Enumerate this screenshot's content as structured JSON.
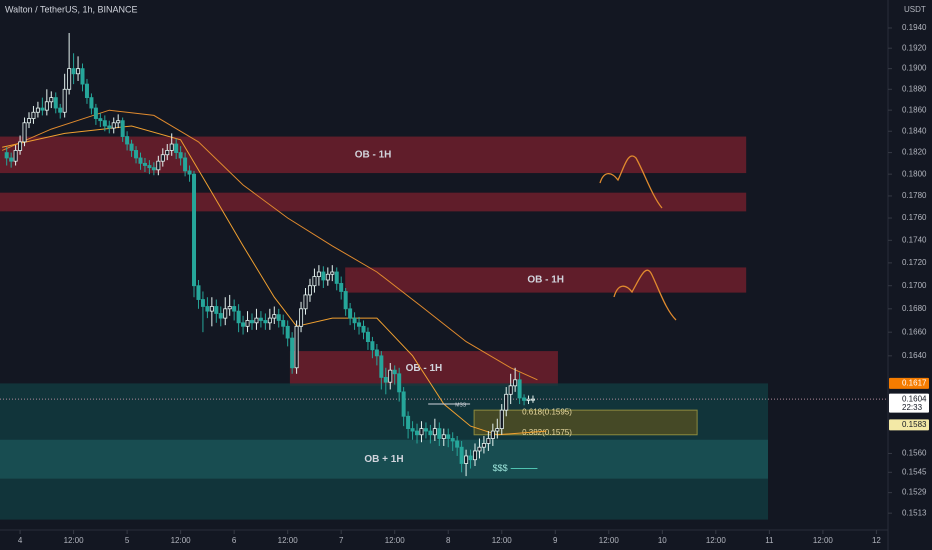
{
  "chart_data": {
    "type": "candlestick",
    "title": "Walton / TetherUS, 1h, BINANCE",
    "currency": "USDT",
    "log_scale": true,
    "grid": false,
    "background": "#131722",
    "up_color": "#e6f4f1",
    "down_color": "#26a69a",
    "xlim": [
      -4.5,
      194.6
    ],
    "ylim": [
      0.15,
      0.1968
    ],
    "xticks": [
      {
        "value": 0,
        "label": "4"
      },
      {
        "value": 12,
        "label": "12:00"
      },
      {
        "value": 24,
        "label": "5"
      },
      {
        "value": 36,
        "label": "12:00"
      },
      {
        "value": 48,
        "label": "6"
      },
      {
        "value": 60,
        "label": "12:00"
      },
      {
        "value": 72,
        "label": "7"
      },
      {
        "value": 84,
        "label": "12:00"
      },
      {
        "value": 96,
        "label": "8"
      },
      {
        "value": 108,
        "label": "12:00"
      },
      {
        "value": 120,
        "label": "9"
      },
      {
        "value": 132,
        "label": "12:00"
      },
      {
        "value": 144,
        "label": "10"
      },
      {
        "value": 156,
        "label": "12:00"
      },
      {
        "value": 168,
        "label": "11"
      },
      {
        "value": 180,
        "label": "12:00"
      },
      {
        "value": 192,
        "label": "12"
      }
    ],
    "yticks": [
      {
        "value": 0.194,
        "label": "0.1940"
      },
      {
        "value": 0.192,
        "label": "0.1920"
      },
      {
        "value": 0.19,
        "label": "0.1900"
      },
      {
        "value": 0.188,
        "label": "0.1880"
      },
      {
        "value": 0.186,
        "label": "0.1860"
      },
      {
        "value": 0.184,
        "label": "0.1840"
      },
      {
        "value": 0.182,
        "label": "0.1820"
      },
      {
        "value": 0.18,
        "label": "0.1800"
      },
      {
        "value": 0.178,
        "label": "0.1780"
      },
      {
        "value": 0.176,
        "label": "0.1760"
      },
      {
        "value": 0.174,
        "label": "0.1740"
      },
      {
        "value": 0.172,
        "label": "0.1720"
      },
      {
        "value": 0.17,
        "label": "0.1700"
      },
      {
        "value": 0.168,
        "label": "0.1680"
      },
      {
        "value": 0.166,
        "label": "0.1660"
      },
      {
        "value": 0.164,
        "label": "0.1640"
      },
      {
        "value": 0.156,
        "label": "0.1560"
      },
      0.1545,
      0.1529,
      0.1513
    ],
    "x": [
      -3,
      -2,
      -1,
      0,
      1,
      2,
      3,
      4,
      5,
      6,
      7,
      8,
      9,
      10,
      11,
      12,
      13,
      14,
      15,
      16,
      17,
      18,
      19,
      20,
      21,
      22,
      23,
      24,
      25,
      26,
      27,
      28,
      29,
      30,
      31,
      32,
      33,
      34,
      35,
      36,
      37,
      38,
      39,
      40,
      41,
      42,
      43,
      44,
      45,
      46,
      47,
      48,
      49,
      50,
      51,
      52,
      53,
      54,
      55,
      56,
      57,
      58,
      59,
      60,
      61,
      62,
      63,
      64,
      65,
      66,
      67,
      68,
      69,
      70,
      71,
      72,
      73,
      74,
      75,
      76,
      77,
      78,
      79,
      80,
      81,
      82,
      83,
      84,
      85,
      86,
      87,
      88,
      89,
      90,
      91,
      92,
      93,
      94,
      95,
      96,
      97,
      98,
      99,
      100,
      101,
      102,
      103,
      104,
      105,
      106,
      107,
      108,
      109,
      110,
      111,
      112,
      113,
      114,
      115
    ],
    "open": [
      0.182,
      0.1815,
      0.1812,
      0.1822,
      0.183,
      0.1848,
      0.1852,
      0.1858,
      0.1862,
      0.186,
      0.1868,
      0.1872,
      0.1862,
      0.1858,
      0.188,
      0.19,
      0.1895,
      0.19,
      0.1885,
      0.1872,
      0.1862,
      0.1852,
      0.185,
      0.1845,
      0.1843,
      0.1848,
      0.185,
      0.1835,
      0.1828,
      0.1822,
      0.1815,
      0.181,
      0.1808,
      0.1806,
      0.1804,
      0.1812,
      0.1818,
      0.1822,
      0.1828,
      0.182,
      0.1815,
      0.1803,
      0.18,
      0.17,
      0.1688,
      0.1682,
      0.1678,
      0.1682,
      0.1676,
      0.1672,
      0.168,
      0.1682,
      0.1678,
      0.1668,
      0.1665,
      0.167,
      0.1668,
      0.1672,
      0.167,
      0.1668,
      0.1672,
      0.1675,
      0.167,
      0.1665,
      0.1655,
      0.163,
      0.1665,
      0.168,
      0.1692,
      0.17,
      0.1708,
      0.1712,
      0.1705,
      0.171,
      0.1712,
      0.1702,
      0.1695,
      0.168,
      0.1672,
      0.1668,
      0.1665,
      0.166,
      0.1652,
      0.1645,
      0.164,
      0.1622,
      0.1618,
      0.1628,
      0.1625,
      0.161,
      0.159,
      0.158,
      0.1578,
      0.1575,
      0.158,
      0.1578,
      0.1575,
      0.158,
      0.1572,
      0.1575,
      0.1572,
      0.157,
      0.1565,
      0.1552,
      0.1558,
      0.1555,
      0.1562,
      0.1565,
      0.1568,
      0.1572,
      0.1578,
      0.158,
      0.1595,
      0.1608,
      0.1615,
      0.162,
      0.1605,
      0.1603,
      0.1604
    ],
    "high": [
      0.1825,
      0.182,
      0.1827,
      0.1836,
      0.1853,
      0.1858,
      0.1864,
      0.1868,
      0.1872,
      0.188,
      0.1878,
      0.1877,
      0.1866,
      0.1895,
      0.1935,
      0.1915,
      0.1912,
      0.1905,
      0.189,
      0.1876,
      0.1866,
      0.1857,
      0.1855,
      0.185,
      0.1853,
      0.1856,
      0.1853,
      0.184,
      0.1832,
      0.1826,
      0.182,
      0.1815,
      0.1813,
      0.1811,
      0.1817,
      0.1824,
      0.1828,
      0.1838,
      0.1833,
      0.1826,
      0.182,
      0.1808,
      0.1803,
      0.1705,
      0.1695,
      0.169,
      0.169,
      0.1688,
      0.1682,
      0.169,
      0.1692,
      0.1688,
      0.1684,
      0.1674,
      0.1678,
      0.1676,
      0.168,
      0.1678,
      0.1676,
      0.168,
      0.1682,
      0.168,
      0.1675,
      0.167,
      0.166,
      0.167,
      0.1686,
      0.1698,
      0.1706,
      0.1715,
      0.1718,
      0.1717,
      0.1716,
      0.1718,
      0.1716,
      0.1708,
      0.1698,
      0.1685,
      0.1677,
      0.1673,
      0.167,
      0.1664,
      0.1656,
      0.165,
      0.1644,
      0.163,
      0.1634,
      0.1632,
      0.163,
      0.1614,
      0.1594,
      0.1586,
      0.1584,
      0.1586,
      0.1585,
      0.1583,
      0.1588,
      0.1585,
      0.158,
      0.158,
      0.1577,
      0.1574,
      0.157,
      0.1563,
      0.1563,
      0.1568,
      0.1572,
      0.1574,
      0.1578,
      0.1584,
      0.1588,
      0.16,
      0.1614,
      0.1625,
      0.163,
      0.1626,
      0.1608,
      0.1607,
      0.1607
    ],
    "low": [
      0.1808,
      0.1806,
      0.1808,
      0.1818,
      0.1826,
      0.1843,
      0.1847,
      0.1853,
      0.1855,
      0.1855,
      0.1862,
      0.1857,
      0.1852,
      0.1853,
      0.1875,
      0.1885,
      0.1888,
      0.1878,
      0.1866,
      0.1856,
      0.1846,
      0.1844,
      0.184,
      0.1838,
      0.1838,
      0.1843,
      0.183,
      0.1822,
      0.1816,
      0.181,
      0.1804,
      0.1802,
      0.18,
      0.1799,
      0.1799,
      0.1807,
      0.1813,
      0.1817,
      0.1814,
      0.1808,
      0.1798,
      0.1793,
      0.169,
      0.168,
      0.166,
      0.1672,
      0.1665,
      0.1668,
      0.1665,
      0.1666,
      0.1674,
      0.167,
      0.166,
      0.1658,
      0.166,
      0.1662,
      0.1662,
      0.1664,
      0.1662,
      0.1662,
      0.1667,
      0.1664,
      0.1658,
      0.1648,
      0.1625,
      0.1625,
      0.166,
      0.1675,
      0.1686,
      0.1694,
      0.17,
      0.1698,
      0.17,
      0.1704,
      0.1696,
      0.1688,
      0.1674,
      0.1666,
      0.1662,
      0.1658,
      0.1654,
      0.1645,
      0.1638,
      0.1632,
      0.1612,
      0.1608,
      0.1612,
      0.1616,
      0.1602,
      0.1582,
      0.1572,
      0.1571,
      0.1568,
      0.1569,
      0.1572,
      0.1568,
      0.157,
      0.1566,
      0.1566,
      0.1565,
      0.1562,
      0.1558,
      0.1545,
      0.1542,
      0.1548,
      0.155,
      0.1556,
      0.156,
      0.1562,
      0.1566,
      0.1572,
      0.1575,
      0.159,
      0.16,
      0.161,
      0.16,
      0.1599,
      0.16,
      0.1601
    ],
    "close": [
      0.1815,
      0.1812,
      0.1822,
      0.183,
      0.1848,
      0.1852,
      0.1858,
      0.1862,
      0.186,
      0.1868,
      0.1872,
      0.1862,
      0.1858,
      0.188,
      0.19,
      0.1895,
      0.19,
      0.1885,
      0.1872,
      0.1862,
      0.1852,
      0.185,
      0.1845,
      0.1843,
      0.1848,
      0.185,
      0.1835,
      0.1828,
      0.1822,
      0.1815,
      0.181,
      0.1808,
      0.1806,
      0.1804,
      0.1812,
      0.1818,
      0.1822,
      0.1828,
      0.182,
      0.1815,
      0.1803,
      0.18,
      0.17,
      0.1688,
      0.1682,
      0.1678,
      0.1682,
      0.1676,
      0.1672,
      0.168,
      0.1682,
      0.1678,
      0.1668,
      0.1665,
      0.167,
      0.1668,
      0.1672,
      0.167,
      0.1668,
      0.1672,
      0.1675,
      0.167,
      0.1665,
      0.1655,
      0.163,
      0.1665,
      0.168,
      0.1692,
      0.17,
      0.1708,
      0.1712,
      0.1705,
      0.171,
      0.1712,
      0.1702,
      0.1695,
      0.168,
      0.1672,
      0.1668,
      0.1665,
      0.166,
      0.1652,
      0.1645,
      0.164,
      0.1622,
      0.1618,
      0.1628,
      0.1625,
      0.161,
      0.159,
      0.158,
      0.1578,
      0.1575,
      0.158,
      0.1578,
      0.1575,
      0.158,
      0.1572,
      0.1575,
      0.1572,
      0.157,
      0.1565,
      0.1552,
      0.1558,
      0.1555,
      0.1562,
      0.1565,
      0.1568,
      0.1572,
      0.1578,
      0.158,
      0.1595,
      0.1608,
      0.1615,
      0.162,
      0.1605,
      0.1603,
      0.1604,
      0.1604
    ],
    "lines": [
      {
        "color": "#e08a2e",
        "x": [
          -4,
          7,
          20,
          30,
          40,
          50,
          60,
          70,
          80,
          90,
          100,
          110,
          116
        ],
        "values": [
          0.1822,
          0.1842,
          0.186,
          0.1855,
          0.183,
          0.179,
          0.176,
          0.1735,
          0.1712,
          0.1682,
          0.1652,
          0.163,
          0.162
        ]
      },
      {
        "color": "#f0a030",
        "x": [
          -4,
          10,
          25,
          36,
          42,
          50,
          57,
          62,
          70,
          80,
          88,
          95,
          101,
          107,
          118
        ],
        "values": [
          0.1825,
          0.1838,
          0.1845,
          0.1832,
          0.179,
          0.1735,
          0.169,
          0.1665,
          0.1672,
          0.1672,
          0.164,
          0.16,
          0.1582,
          0.1575,
          0.1578
        ]
      }
    ],
    "zones": [
      {
        "top": 0.1835,
        "bottom": 0.1801,
        "x_start": -4.5,
        "x_end": 162.8,
        "color": "#6e1f2b",
        "label": "OB - 1H"
      },
      {
        "top": 0.1783,
        "bottom": 0.1766,
        "x_start": -4.5,
        "x_end": 162.8,
        "color": "#6e1f2b"
      },
      {
        "top": 0.1716,
        "bottom": 0.1694,
        "x_start": 72.9,
        "x_end": 162.8,
        "color": "#6e1f2b",
        "label": "OB - 1H"
      },
      {
        "top": 0.1644,
        "bottom": 0.1615,
        "x_start": 60.5,
        "x_end": 120.6,
        "color": "#6e1f2b",
        "label": "OB - 1H"
      },
      {
        "top": 0.1617,
        "bottom": 0.1508,
        "x_start": -4.5,
        "x_end": 167.7,
        "color": "#123a3e"
      },
      {
        "top": 0.1571,
        "bottom": 0.154,
        "x_start": -4.5,
        "x_end": 167.7,
        "color": "#1a5256",
        "label": "OB + 1H"
      }
    ],
    "fib": {
      "x_start": 101.8,
      "x_end": 151.8,
      "color": "#4b4b25",
      "levels": [
        {
          "value": 0.1595,
          "label": "0.618(0.1595)"
        },
        {
          "value": 0.1575,
          "label": "0.382(0.1575)"
        }
      ]
    },
    "mss": {
      "label": "MSS",
      "value": 0.16,
      "x_start": 91.5,
      "x_end": 100.9
    },
    "liquidity": {
      "label": "$$$",
      "value": 0.1548,
      "x_start": 110,
      "x_end": 116
    },
    "price_tags": [
      {
        "value": 0.1617,
        "color": "#f57c00",
        "text_color": "#ffffff"
      },
      {
        "value": 0.1604,
        "color": "#ffffff",
        "text_color": "#131722",
        "countdown": "22:33"
      },
      {
        "value": 0.1583,
        "color": "#f3e9a6",
        "text_color": "#131722"
      }
    ]
  }
}
